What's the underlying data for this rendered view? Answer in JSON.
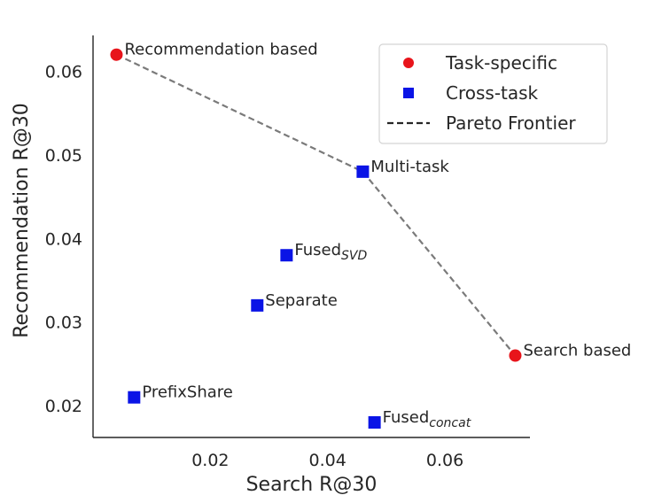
{
  "chart_data": {
    "type": "scatter",
    "xlabel": "Search R@30",
    "ylabel": "Recommendation R@30",
    "xlim": [
      0.0,
      0.0745
    ],
    "ylim": [
      0.0162,
      0.0643
    ],
    "x_ticks": [
      0.02,
      0.04,
      0.06
    ],
    "x_tick_labels": [
      "0.02",
      "0.04",
      "0.06"
    ],
    "y_ticks": [
      0.02,
      0.03,
      0.04,
      0.05,
      0.06
    ],
    "y_tick_labels": [
      "0.02",
      "0.03",
      "0.04",
      "0.05",
      "0.06"
    ],
    "grid": false,
    "legend_position": "top-right",
    "series": [
      {
        "name": "Task-specific",
        "marker": "circle",
        "color": "#e8141b",
        "points": [
          {
            "label": "Recommendation based",
            "sub": "",
            "x": 0.004,
            "y": 0.062
          },
          {
            "label": "Search based",
            "sub": "",
            "x": 0.072,
            "y": 0.026
          }
        ]
      },
      {
        "name": "Cross-task",
        "marker": "square",
        "color": "#0a14e6",
        "points": [
          {
            "label": "Multi-task",
            "sub": "",
            "x": 0.046,
            "y": 0.048
          },
          {
            "label": "Fused",
            "sub": "SVD",
            "x": 0.033,
            "y": 0.038
          },
          {
            "label": "Separate",
            "sub": "",
            "x": 0.028,
            "y": 0.032
          },
          {
            "label": "PrefixShare",
            "sub": "",
            "x": 0.007,
            "y": 0.021
          },
          {
            "label": "Fused",
            "sub": "concat",
            "x": 0.048,
            "y": 0.018
          }
        ]
      }
    ],
    "frontier": {
      "name": "Pareto Frontier",
      "style": "dashed",
      "color": "#7a7a7a",
      "points": [
        [
          0.004,
          0.062
        ],
        [
          0.046,
          0.048
        ],
        [
          0.072,
          0.026
        ]
      ]
    }
  }
}
